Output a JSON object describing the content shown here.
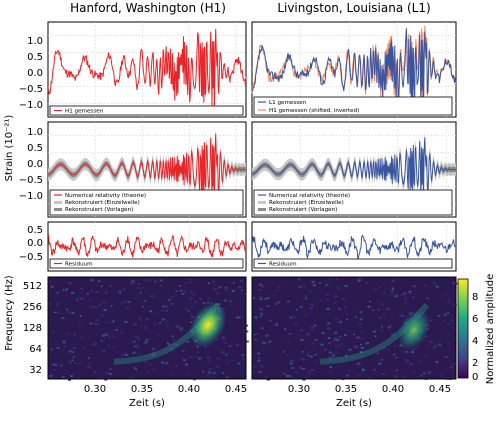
{
  "titles": [
    "Hanford, Washington (H1)",
    "Livingston, Louisiana (L1)"
  ],
  "ylabel_strain": "Strain (10⁻²¹)",
  "ylabel_freq": "Frequency (Hz)",
  "xlabel": "Zeit (s)",
  "colorbar_label": "Normalized amplitude",
  "colors": {
    "h1": "#e8262a",
    "l1": "#3a55a0",
    "l1_shifted": "#f4885a",
    "band_light": "#c8c8c8",
    "band_dark": "#8c8c8c"
  },
  "legends": {
    "top_h1": [
      "H1 gemessen"
    ],
    "top_l1": [
      "L1 gemessen",
      "H1 gemessen (shifted, inverted)"
    ],
    "mid": [
      "Numerical relativity (theorie)",
      "Rekonstruiert (Einzelwelle)",
      "Rekonstruiert (Vorlagen)"
    ],
    "resid": [
      "Residuum"
    ]
  },
  "chart_data": [
    {
      "type": "line",
      "panel": "H1 strain",
      "title": "Hanford, Washington (H1)",
      "ylabel": "Strain (10⁻²¹)",
      "ylim": [
        -1.4,
        1.4
      ],
      "y_ticks": [
        "1.0",
        "0.5",
        "0.0",
        "−0.5",
        "−1.0"
      ],
      "xlim": [
        0.25,
        0.46
      ],
      "series": [
        {
          "name": "H1 gemessen",
          "x": [
            0.25,
            0.26,
            0.27,
            0.28,
            0.29,
            0.3,
            0.31,
            0.32,
            0.33,
            0.34,
            0.35,
            0.36,
            0.37,
            0.38,
            0.39,
            0.4,
            0.405,
            0.41,
            0.415,
            0.42,
            0.425,
            0.43,
            0.435,
            0.44,
            0.45,
            0.46
          ],
          "y": [
            0.1,
            -0.2,
            0.4,
            -0.4,
            0.5,
            -0.3,
            0.2,
            0.0,
            -0.3,
            0.5,
            -0.4,
            0.3,
            -0.5,
            0.6,
            -0.7,
            0.9,
            -0.8,
            1.1,
            -1.0,
            1.2,
            -0.6,
            0.3,
            -0.2,
            0.1,
            0.0,
            0.2
          ]
        }
      ]
    },
    {
      "type": "line",
      "panel": "L1 strain",
      "title": "Livingston, Louisiana (L1)",
      "ylim": [
        -1.4,
        1.4
      ],
      "xlim": [
        0.25,
        0.46
      ],
      "series": [
        {
          "name": "L1 gemessen",
          "x": [
            0.25,
            0.27,
            0.29,
            0.31,
            0.33,
            0.35,
            0.37,
            0.39,
            0.4,
            0.41,
            0.415,
            0.42,
            0.425,
            0.43,
            0.44,
            0.46
          ],
          "y": [
            0.0,
            0.3,
            -0.3,
            0.3,
            -0.4,
            0.4,
            -0.5,
            0.7,
            -0.8,
            1.0,
            -1.1,
            1.2,
            -0.7,
            0.3,
            -0.2,
            0.1
          ]
        },
        {
          "name": "H1 gemessen (shifted, inverted)",
          "x": [
            0.25,
            0.27,
            0.29,
            0.31,
            0.33,
            0.35,
            0.37,
            0.39,
            0.4,
            0.41,
            0.415,
            0.42,
            0.425,
            0.43,
            0.44,
            0.46
          ],
          "y": [
            -0.2,
            0.4,
            -0.2,
            0.4,
            -0.3,
            0.5,
            -0.6,
            0.8,
            -0.7,
            1.1,
            -1.0,
            1.1,
            -0.6,
            0.4,
            -0.1,
            0.2
          ]
        }
      ]
    },
    {
      "type": "line",
      "panel": "H1 reconstruction",
      "ylim": [
        -1.4,
        1.4
      ],
      "y_ticks": [
        "1.0",
        "0.5",
        "0.0",
        "−0.5",
        "−1.0"
      ],
      "series": [
        {
          "name": "Numerical relativity (theorie)",
          "x": [
            0.25,
            0.3,
            0.35,
            0.38,
            0.4,
            0.41,
            0.42,
            0.425,
            0.43,
            0.44,
            0.46
          ],
          "y": [
            0.0,
            0.2,
            -0.3,
            0.5,
            -0.8,
            1.0,
            -1.2,
            1.2,
            -0.4,
            0.1,
            0.0
          ]
        }
      ]
    },
    {
      "type": "line",
      "panel": "L1 reconstruction",
      "ylim": [
        -1.4,
        1.4
      ],
      "series": [
        {
          "name": "Numerical relativity (theorie)",
          "x": [
            0.25,
            0.3,
            0.35,
            0.38,
            0.4,
            0.41,
            0.42,
            0.425,
            0.43,
            0.44,
            0.46
          ],
          "y": [
            0.0,
            0.2,
            -0.3,
            0.5,
            -0.8,
            1.0,
            -1.2,
            1.2,
            -0.4,
            0.1,
            0.0
          ]
        }
      ]
    },
    {
      "type": "line",
      "panel": "H1 residual",
      "ylim": [
        -1.0,
        1.0
      ],
      "y_ticks": [
        "0.5",
        "0.0",
        "−0.5"
      ],
      "series": [
        {
          "name": "Residuum"
        }
      ]
    },
    {
      "type": "line",
      "panel": "L1 residual",
      "ylim": [
        -1.0,
        1.0
      ],
      "series": [
        {
          "name": "Residuum"
        }
      ]
    },
    {
      "type": "heatmap",
      "panel": "H1 spectrogram",
      "ylabel": "Frequency (Hz)",
      "xlabel": "Zeit (s)",
      "x_ticks": [
        "0.30",
        "0.35",
        "0.40",
        "0.45"
      ],
      "y_ticks": [
        "512",
        "256",
        "128",
        "64",
        "32"
      ],
      "yscale": "log2",
      "track": {
        "t": [
          0.3,
          0.35,
          0.38,
          0.4,
          0.41,
          0.42,
          0.425,
          0.43
        ],
        "f": [
          35,
          40,
          50,
          70,
          90,
          130,
          180,
          250
        ]
      }
    },
    {
      "type": "heatmap",
      "panel": "L1 spectrogram",
      "xlabel": "Zeit (s)",
      "x_ticks": [
        "0.30",
        "0.35",
        "0.40",
        "0.45"
      ],
      "yscale": "log2",
      "track": {
        "t": [
          0.3,
          0.35,
          0.38,
          0.4,
          0.41,
          0.42,
          0.425,
          0.43
        ],
        "f": [
          35,
          40,
          50,
          70,
          90,
          130,
          180,
          250
        ]
      }
    },
    {
      "type": "colorbar",
      "label": "Normalized amplitude",
      "ticks": [
        "8",
        "6",
        "4",
        "2",
        "0"
      ],
      "range": [
        0,
        9
      ]
    }
  ]
}
